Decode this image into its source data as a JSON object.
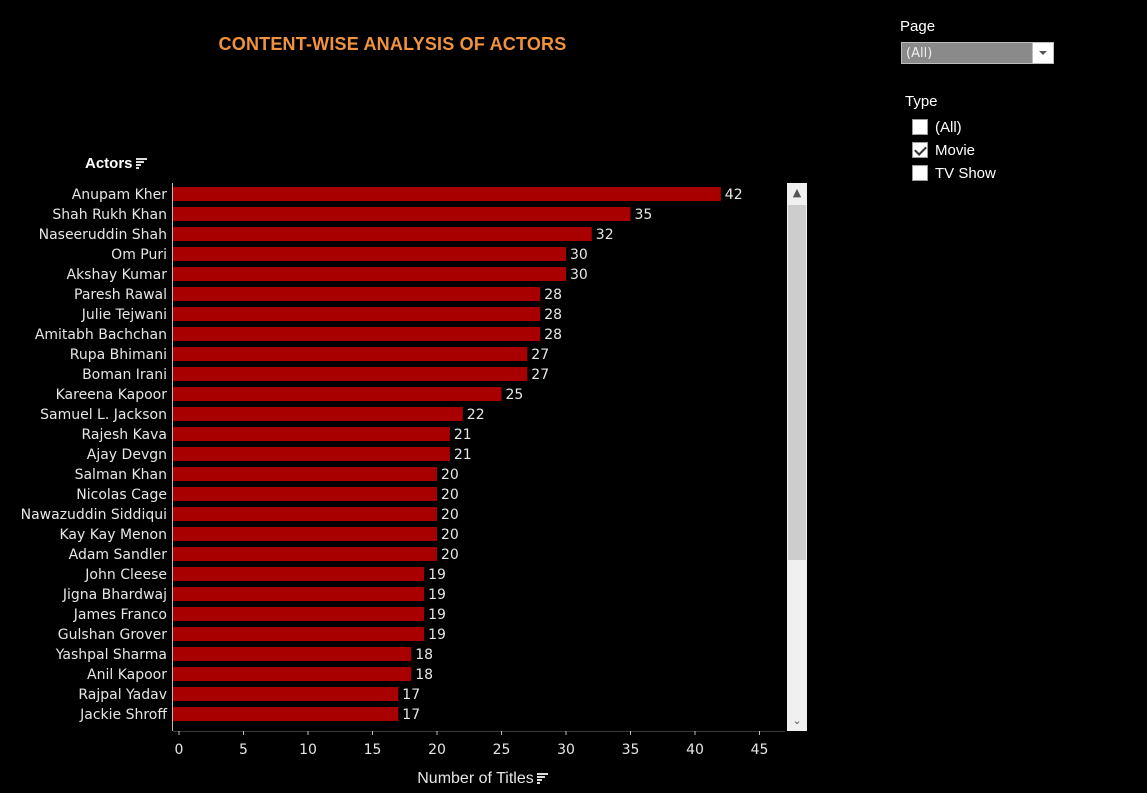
{
  "title": "CONTENT-WISE ANALYSIS OF ACTORS",
  "row_header": "Actors",
  "x_axis_title": "Number of Titles",
  "filters": {
    "page": {
      "label": "Page",
      "value": "(All)"
    },
    "type": {
      "label": "Type",
      "options": [
        {
          "label": "(All)",
          "checked": false
        },
        {
          "label": "Movie",
          "checked": true
        },
        {
          "label": "TV Show",
          "checked": false
        }
      ]
    }
  },
  "colors": {
    "bar": "#a80000",
    "title": "#f0923e",
    "background": "#000000"
  },
  "chart_data": {
    "type": "bar",
    "orientation": "horizontal",
    "categories": [
      "Anupam Kher",
      "Shah Rukh Khan",
      "Naseeruddin Shah",
      "Om Puri",
      "Akshay Kumar",
      "Paresh Rawal",
      "Julie Tejwani",
      "Amitabh Bachchan",
      "Rupa Bhimani",
      "Boman Irani",
      "Kareena Kapoor",
      "Samuel L. Jackson",
      "Rajesh Kava",
      "Ajay Devgn",
      "Salman Khan",
      "Nicolas Cage",
      "Nawazuddin Siddiqui",
      "Kay Kay Menon",
      "Adam Sandler",
      "John Cleese",
      "Jigna Bhardwaj",
      "James Franco",
      "Gulshan Grover",
      "Yashpal Sharma",
      "Anil Kapoor",
      "Rajpal Yadav",
      "Jackie Shroff"
    ],
    "values": [
      42,
      35,
      32,
      30,
      30,
      28,
      28,
      28,
      27,
      27,
      25,
      22,
      21,
      21,
      20,
      20,
      20,
      20,
      20,
      19,
      19,
      19,
      19,
      18,
      18,
      17,
      17
    ],
    "xlabel": "Number of Titles",
    "ylabel": "Actors",
    "xlim": [
      0,
      45
    ],
    "xticks": [
      0,
      5,
      10,
      15,
      20,
      25,
      30,
      35,
      40,
      45
    ],
    "grid": false,
    "data_labels": true
  }
}
